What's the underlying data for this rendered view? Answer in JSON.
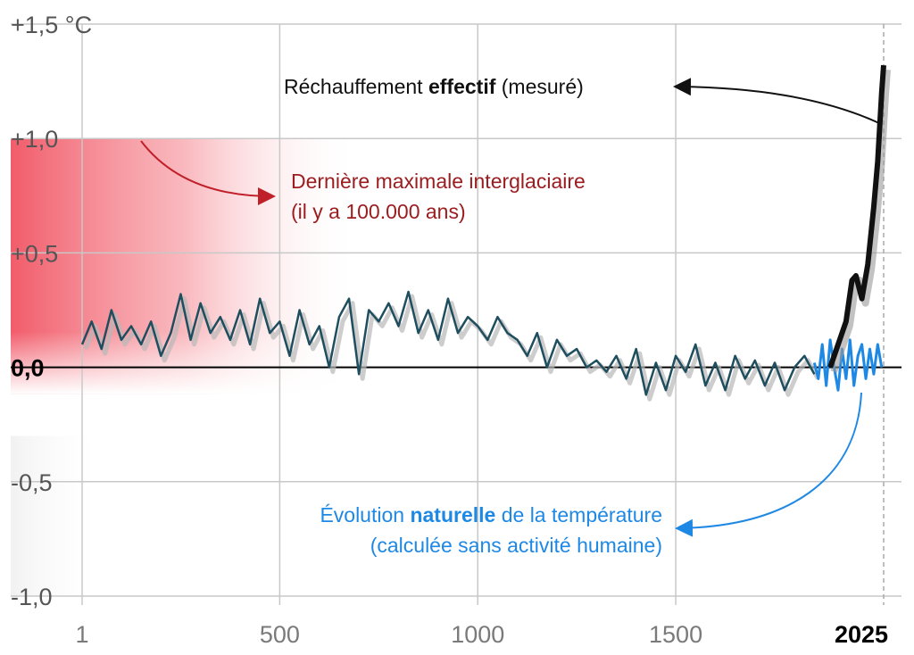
{
  "chart_data": {
    "type": "line",
    "x_ticks": [
      "1",
      "500",
      "1000",
      "1500",
      "2025"
    ],
    "y_ticks": [
      "+1,5 °C",
      "+1,0",
      "+0,5",
      "0,0",
      "-0,5",
      "-1,0"
    ],
    "ylim": [
      -1.0,
      1.5
    ],
    "xlim": [
      1,
      2025
    ],
    "grid": true,
    "shaded_band": {
      "label": "Dernière maximale interglaciaire",
      "level": 1.0,
      "color": "#f04a5a"
    },
    "series": [
      {
        "name": "Évolution naturelle de la température",
        "color": "#1f4e5f",
        "x": [
          1,
          25,
          50,
          75,
          100,
          125,
          150,
          175,
          200,
          225,
          250,
          275,
          300,
          325,
          350,
          375,
          400,
          425,
          450,
          475,
          500,
          525,
          550,
          575,
          600,
          625,
          650,
          675,
          700,
          725,
          750,
          775,
          800,
          825,
          850,
          875,
          900,
          925,
          950,
          975,
          1000,
          1025,
          1050,
          1075,
          1100,
          1125,
          1150,
          1175,
          1200,
          1225,
          1250,
          1275,
          1300,
          1325,
          1350,
          1375,
          1400,
          1425,
          1450,
          1475,
          1500,
          1525,
          1550,
          1575,
          1600,
          1625,
          1650,
          1675,
          1700,
          1725,
          1750,
          1775,
          1800,
          1825,
          1850
        ],
        "y": [
          0.1,
          0.2,
          0.08,
          0.25,
          0.12,
          0.18,
          0.1,
          0.2,
          0.05,
          0.15,
          0.32,
          0.12,
          0.28,
          0.15,
          0.22,
          0.12,
          0.25,
          0.1,
          0.3,
          0.15,
          0.2,
          0.05,
          0.25,
          0.1,
          0.18,
          0.0,
          0.22,
          0.3,
          -0.03,
          0.25,
          0.2,
          0.28,
          0.18,
          0.33,
          0.15,
          0.25,
          0.12,
          0.3,
          0.15,
          0.22,
          0.18,
          0.12,
          0.22,
          0.15,
          0.12,
          0.05,
          0.15,
          0.0,
          0.12,
          0.05,
          0.08,
          0.0,
          0.03,
          -0.02,
          0.05,
          -0.05,
          0.08,
          -0.12,
          0.02,
          -0.1,
          0.05,
          -0.02,
          0.1,
          -0.08,
          0.02,
          -0.1,
          0.05,
          -0.05,
          0.03,
          -0.08,
          0.02,
          -0.1,
          0.0,
          0.05,
          -0.03
        ]
      },
      {
        "name": "calculée sans activité humaine",
        "color": "#1e88e5",
        "x": [
          1850,
          1860,
          1870,
          1880,
          1890,
          1900,
          1910,
          1920,
          1930,
          1940,
          1950,
          1960,
          1970,
          1980,
          1990,
          2000,
          2010,
          2020
        ],
        "y": [
          0.02,
          -0.05,
          0.1,
          -0.08,
          0.12,
          0.0,
          -0.1,
          0.08,
          -0.05,
          0.12,
          -0.08,
          0.05,
          0.1,
          -0.05,
          0.08,
          -0.03,
          0.1,
          0.0
        ]
      },
      {
        "name": "Réchauffement effectif (mesuré)",
        "color": "#111111",
        "x": [
          1890,
          1910,
          1930,
          1945,
          1955,
          1970,
          1985,
          2000,
          2010,
          2020,
          2025
        ],
        "y": [
          0.0,
          0.1,
          0.2,
          0.38,
          0.4,
          0.3,
          0.45,
          0.7,
          0.9,
          1.2,
          1.32
        ]
      }
    ]
  },
  "annotations": {
    "measured": {
      "prefix": "Réchauffement ",
      "bold": "effectif",
      "suffix": " (mesuré)"
    },
    "interglacial": {
      "line1": "Dernière maximale interglaciaire",
      "line2": "(il y a 100.000 ans)"
    },
    "natural": {
      "prefix": "Évolution ",
      "bold": "naturelle",
      "suffix": " de la température",
      "line2": "(calculée sans activité humaine)"
    }
  },
  "colors": {
    "interglacial_text": "#9b1d20",
    "natural_text": "#1e88e5",
    "measured_text": "#111111"
  }
}
